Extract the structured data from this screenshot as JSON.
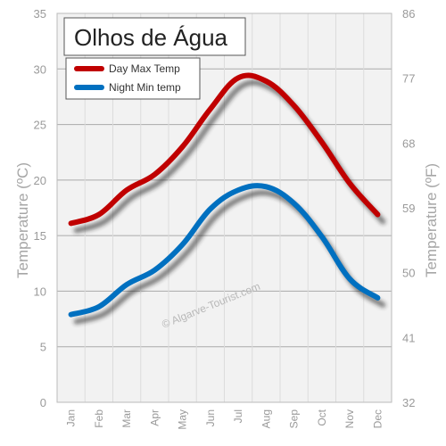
{
  "chart_data": {
    "type": "line",
    "title": "Olhos de Água",
    "categories": [
      "Jan",
      "Feb",
      "Mar",
      "Apr",
      "May",
      "Jun",
      "Jul",
      "Aug",
      "Sep",
      "Oct",
      "Nov",
      "Dec"
    ],
    "series": [
      {
        "name": "Day Max Temp",
        "color": "#c00000",
        "values": [
          16.1,
          16.9,
          19.1,
          20.5,
          23.0,
          26.4,
          29.2,
          28.9,
          26.7,
          23.4,
          19.7,
          16.9
        ]
      },
      {
        "name": "Night Min temp",
        "color": "#0070c0",
        "values": [
          7.9,
          8.6,
          10.6,
          11.9,
          14.2,
          17.4,
          19.1,
          19.4,
          17.9,
          14.9,
          11.1,
          9.4
        ]
      }
    ],
    "ylabel": "Temperature (ºC)",
    "ylabel_right": "Temperature (ºF)",
    "ylim": [
      0,
      35
    ],
    "yticks": [
      "0",
      "5",
      "10",
      "15",
      "20",
      "25",
      "30",
      "35"
    ],
    "ylim_right": [
      32,
      86
    ],
    "yticks_right": [
      "32",
      "41",
      "50",
      "59",
      "68",
      "77",
      "86"
    ],
    "grid": true,
    "legend_position": "top-left",
    "watermark": "© Algarve-Tourist.com",
    "plot_background": "#f2f2f2",
    "grid_color": "#aaaaaa"
  }
}
